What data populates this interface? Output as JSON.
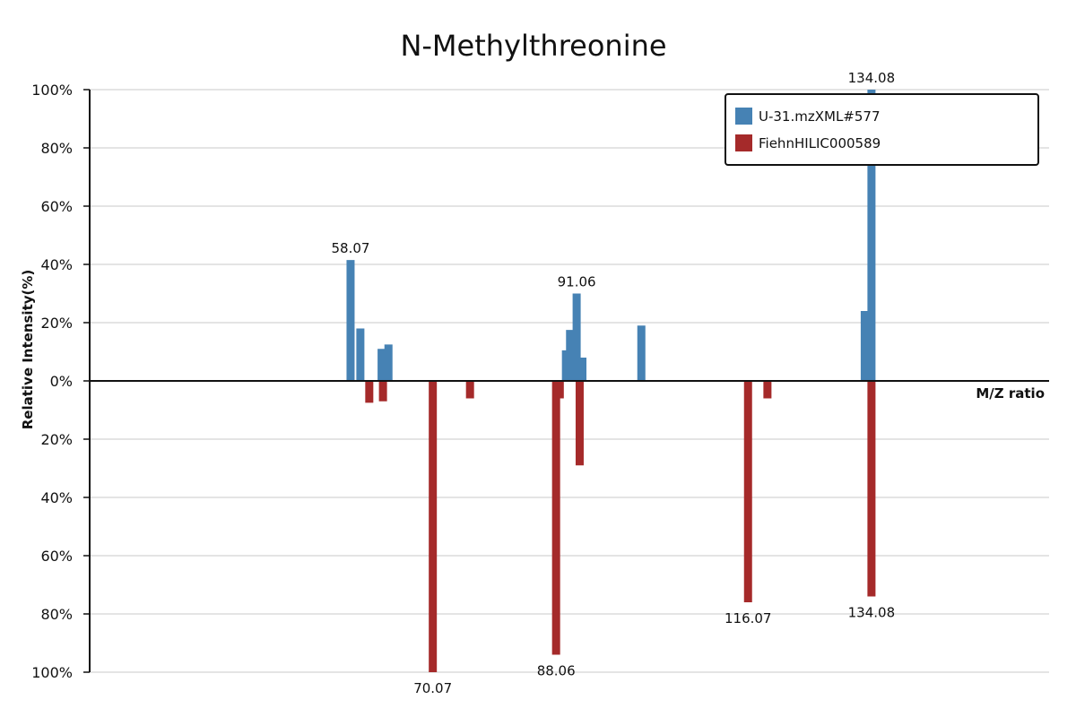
{
  "chart_data": {
    "type": "bar",
    "title": "N-Methylthreonine",
    "xlabel": "M/Z ratio",
    "ylabel": "Relative Intensity(%)",
    "ylim": [
      -100,
      100
    ],
    "xlim": [
      20,
      160
    ],
    "grid": true,
    "legend_position": "top-right",
    "y_ticks": [
      "100%",
      "80%",
      "60%",
      "40%",
      "20%",
      "0%",
      "20%",
      "40%",
      "60%",
      "80%",
      "100%"
    ],
    "series": [
      {
        "name": "U-31.mzXML#577",
        "color": "#4682b4",
        "direction": "up",
        "peaks": [
          {
            "mz": 58.07,
            "intensity": 41.5,
            "label": "58.07"
          },
          {
            "mz": 59.5,
            "intensity": 18
          },
          {
            "mz": 62.6,
            "intensity": 11
          },
          {
            "mz": 63.6,
            "intensity": 12.5
          },
          {
            "mz": 89.5,
            "intensity": 10.5
          },
          {
            "mz": 90.1,
            "intensity": 17.5
          },
          {
            "mz": 91.06,
            "intensity": 30,
            "label": "91.06"
          },
          {
            "mz": 91.9,
            "intensity": 8
          },
          {
            "mz": 100.5,
            "intensity": 19
          },
          {
            "mz": 133.1,
            "intensity": 24
          },
          {
            "mz": 134.08,
            "intensity": 100,
            "label": "134.08"
          }
        ]
      },
      {
        "name": "FiehnHILIC000589",
        "color": "#a52a2a",
        "direction": "down",
        "peaks": [
          {
            "mz": 60.8,
            "intensity": 7.5
          },
          {
            "mz": 62.8,
            "intensity": 7
          },
          {
            "mz": 70.07,
            "intensity": 100,
            "label": "70.07"
          },
          {
            "mz": 75.5,
            "intensity": 6
          },
          {
            "mz": 88.06,
            "intensity": 94,
            "label": "88.06"
          },
          {
            "mz": 88.6,
            "intensity": 6
          },
          {
            "mz": 91.5,
            "intensity": 29
          },
          {
            "mz": 116.07,
            "intensity": 76,
            "label": "116.07"
          },
          {
            "mz": 118.9,
            "intensity": 6
          },
          {
            "mz": 134.08,
            "intensity": 74,
            "label": "134.08"
          }
        ]
      }
    ]
  }
}
